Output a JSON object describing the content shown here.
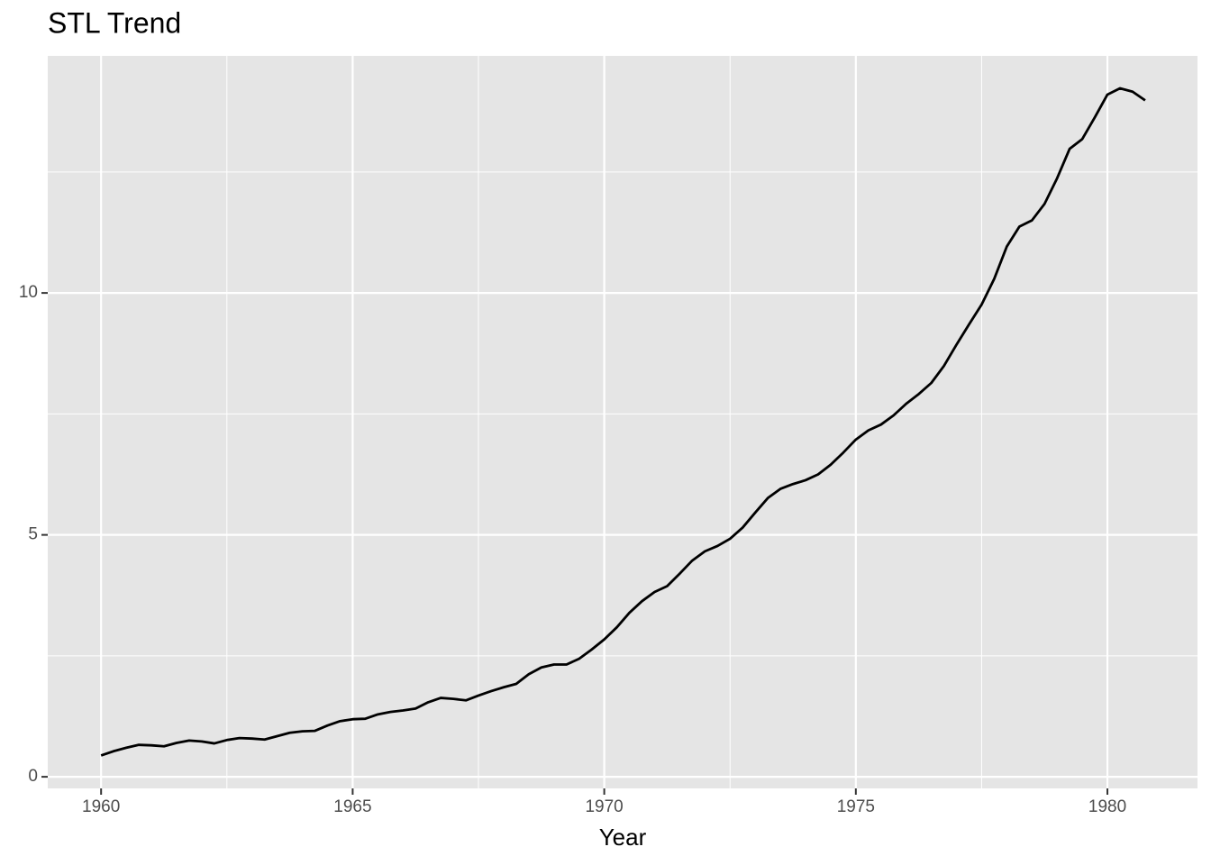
{
  "chart_data": {
    "type": "line",
    "title": "STL Trend",
    "x_label": "Year",
    "x": [
      1960,
      1960.25,
      1960.5,
      1960.75,
      1961,
      1961.25,
      1961.5,
      1961.75,
      1962,
      1962.25,
      1962.5,
      1962.75,
      1963,
      1963.25,
      1963.5,
      1963.75,
      1964,
      1964.25,
      1964.5,
      1964.75,
      1965,
      1965.25,
      1965.5,
      1965.75,
      1966,
      1966.25,
      1966.5,
      1966.75,
      1967,
      1967.25,
      1967.5,
      1967.75,
      1968,
      1968.25,
      1968.5,
      1968.75,
      1969,
      1969.25,
      1969.5,
      1969.75,
      1970,
      1970.25,
      1970.5,
      1970.75,
      1971,
      1971.25,
      1971.5,
      1971.75,
      1972,
      1972.25,
      1972.5,
      1972.75,
      1973,
      1973.25,
      1973.5,
      1973.75,
      1974,
      1974.25,
      1974.5,
      1974.75,
      1975,
      1975.25,
      1975.5,
      1975.75,
      1976,
      1976.25,
      1976.5,
      1976.75,
      1977,
      1977.25,
      1977.5,
      1977.75,
      1978,
      1978.25,
      1978.5,
      1978.75,
      1979,
      1979.25,
      1979.5,
      1979.75,
      1980,
      1980.25,
      1980.5,
      1980.75
    ],
    "series": [
      {
        "color": "#000000",
        "values": [
          0.44,
          0.53,
          0.6,
          0.66,
          0.65,
          0.63,
          0.7,
          0.75,
          0.73,
          0.69,
          0.76,
          0.8,
          0.79,
          0.77,
          0.84,
          0.91,
          0.94,
          0.95,
          1.06,
          1.15,
          1.19,
          1.2,
          1.29,
          1.34,
          1.37,
          1.41,
          1.54,
          1.63,
          1.61,
          1.58,
          1.68,
          1.77,
          1.85,
          1.92,
          2.12,
          2.26,
          2.32,
          2.32,
          2.44,
          2.63,
          2.84,
          3.09,
          3.39,
          3.63,
          3.82,
          3.94,
          4.2,
          4.47,
          4.66,
          4.77,
          4.92,
          5.15,
          5.46,
          5.76,
          5.95,
          6.05,
          6.13,
          6.25,
          6.45,
          6.7,
          6.97,
          7.16,
          7.28,
          7.47,
          7.71,
          7.91,
          8.14,
          8.49,
          8.93,
          9.35,
          9.76,
          10.29,
          10.96,
          11.37,
          11.5,
          11.84,
          12.37,
          12.98,
          13.18,
          13.63,
          14.1,
          14.23,
          14.16,
          13.98
        ]
      }
    ],
    "xlim": [
      1958.94,
      1981.79
    ],
    "ylim": [
      -0.24,
      14.9
    ],
    "xticks": [
      1960,
      1965,
      1970,
      1975,
      1980
    ],
    "yticks": [
      0,
      5,
      10
    ],
    "x_minor_ticks": [
      1962.5,
      1967.5,
      1972.5,
      1977.5
    ],
    "y_minor_ticks": [
      2.5,
      7.5,
      12.5
    ],
    "grid": true,
    "panel_color": "#e5e5e5"
  }
}
